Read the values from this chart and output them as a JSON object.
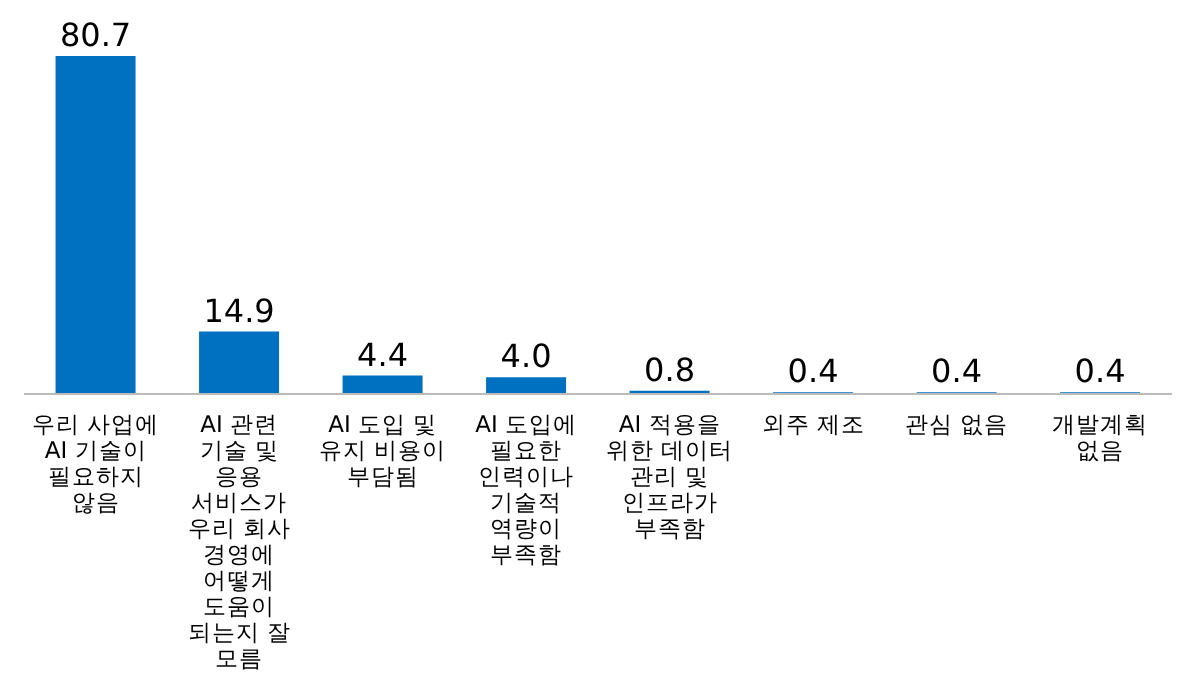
{
  "chart_data": {
    "type": "bar",
    "categories": [
      "우리 사업에 AI 기술이 필요하지 않음",
      "AI 관련 기술 및 응용 서비스가 우리 회사 경영에 어떻게 도움이 되는지 잘 모름",
      "AI 도입 및 유지 비용이 부담됨",
      "AI 도입에 필요한 인력이나 기술적 역량이 부족함",
      "AI 적용을 위한 데이터 관리 및 인프라가 부족함",
      "외주 제조",
      "관심 없음",
      "개발계획 없음"
    ],
    "values": [
      80.7,
      14.9,
      4.4,
      4.0,
      0.8,
      0.4,
      0.4,
      0.4
    ],
    "value_labels": [
      "80.7",
      "14.9",
      "4.4",
      "4.0",
      "0.8",
      "0.4",
      "0.4",
      "0.4"
    ],
    "color": "#0070c0"
  }
}
